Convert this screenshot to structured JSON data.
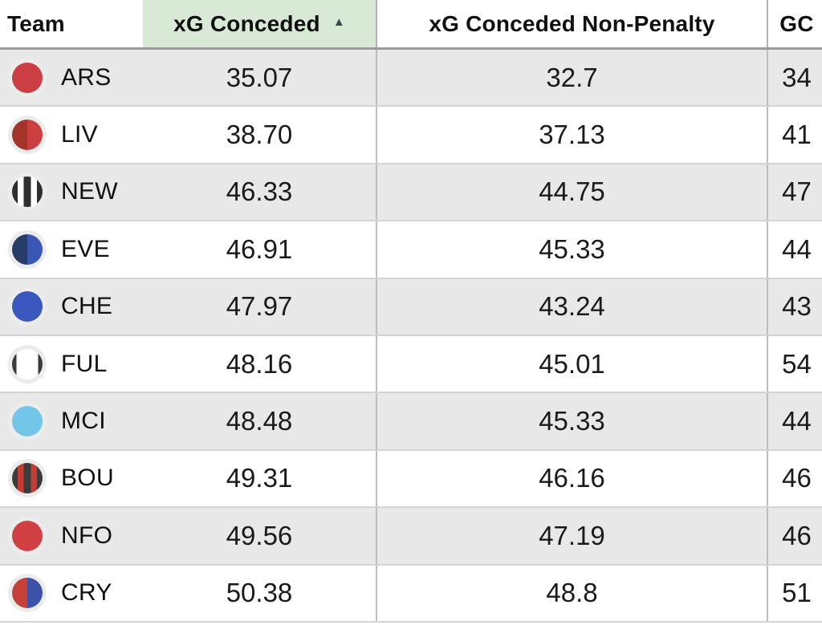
{
  "table": {
    "columns": [
      {
        "key": "team",
        "label": "Team",
        "align": "left",
        "sorted": false
      },
      {
        "key": "xg_conceded",
        "label": "xG Conceded",
        "align": "center",
        "sorted": true,
        "sort_direction": "ascending"
      },
      {
        "key": "xg_conceded_np",
        "label": "xG Conceded Non-Penalty",
        "align": "center",
        "sorted": false
      },
      {
        "key": "gc",
        "label": "GC",
        "align": "center",
        "sorted": false
      }
    ],
    "sort_icon": {
      "name": "sort-ascending-icon",
      "glyph": "▲",
      "color": "#3d4a52"
    },
    "sorted_header_bg": "#d8ead5",
    "rows": [
      {
        "team": "ARS",
        "xg_conceded": "35.07",
        "xg_conceded_np": "32.7",
        "gc": "34",
        "badge": {
          "icon": "arsenal-badge-icon",
          "type": "solid",
          "colors": [
            "#cb3e43"
          ]
        }
      },
      {
        "team": "LIV",
        "xg_conceded": "38.70",
        "xg_conceded_np": "37.13",
        "gc": "41",
        "badge": {
          "icon": "liverpool-badge-icon",
          "type": "half",
          "colors": [
            "#a4342a",
            "#ca4040"
          ]
        }
      },
      {
        "team": "NEW",
        "xg_conceded": "46.33",
        "xg_conceded_np": "44.75",
        "gc": "47",
        "badge": {
          "icon": "newcastle-badge-icon",
          "type": "stripes",
          "colors": [
            "#2f2f2f",
            "#ffffff"
          ]
        }
      },
      {
        "team": "EVE",
        "xg_conceded": "46.91",
        "xg_conceded_np": "45.33",
        "gc": "44",
        "badge": {
          "icon": "everton-badge-icon",
          "type": "half",
          "colors": [
            "#273d67",
            "#3a57b4"
          ]
        }
      },
      {
        "team": "CHE",
        "xg_conceded": "47.97",
        "xg_conceded_np": "43.24",
        "gc": "43",
        "badge": {
          "icon": "chelsea-badge-icon",
          "type": "solid",
          "colors": [
            "#3a57bd"
          ]
        }
      },
      {
        "team": "FUL",
        "xg_conceded": "48.16",
        "xg_conceded_np": "45.01",
        "gc": "54",
        "badge": {
          "icon": "fulham-badge-icon",
          "type": "edges",
          "colors": [
            "#3a3a3a",
            "#ffffff"
          ]
        }
      },
      {
        "team": "MCI",
        "xg_conceded": "48.48",
        "xg_conceded_np": "45.33",
        "gc": "44",
        "badge": {
          "icon": "man-city-badge-icon",
          "type": "solid",
          "colors": [
            "#73c6e8"
          ]
        }
      },
      {
        "team": "BOU",
        "xg_conceded": "49.31",
        "xg_conceded_np": "46.16",
        "gc": "46",
        "badge": {
          "icon": "bournemouth-badge-icon",
          "type": "stripes",
          "colors": [
            "#3b3b3b",
            "#c23e35"
          ]
        }
      },
      {
        "team": "NFO",
        "xg_conceded": "49.56",
        "xg_conceded_np": "47.19",
        "gc": "46",
        "badge": {
          "icon": "nottm-forest-badge-icon",
          "type": "solid",
          "colors": [
            "#d04043"
          ]
        }
      },
      {
        "team": "CRY",
        "xg_conceded": "50.38",
        "xg_conceded_np": "48.8",
        "gc": "51",
        "badge": {
          "icon": "crystal-palace-badge-icon",
          "type": "half",
          "colors": [
            "#c6403a",
            "#3c52a9"
          ]
        }
      }
    ],
    "style": {
      "row_alt_bg": "#e8e8e8",
      "row_bg": "#ffffff",
      "header_border": "#9b9b9b",
      "row_divider": "#d4d4d4",
      "column_divider": "#bdbdbd",
      "badge_plate": "#ececec"
    }
  }
}
